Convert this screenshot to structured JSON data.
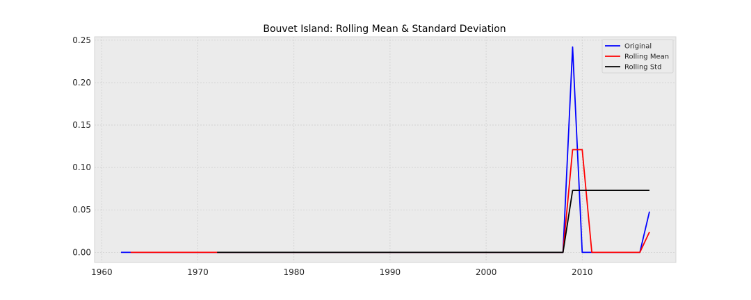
{
  "chart_data": {
    "type": "line",
    "title": "Bouvet Island: Rolling Mean & Standard Deviation",
    "xlabel": "",
    "ylabel": "",
    "xlim": [
      1959.25,
      2019.75
    ],
    "ylim": [
      -0.012,
      0.254
    ],
    "xticks": [
      1960,
      1970,
      1980,
      1990,
      2000,
      2010
    ],
    "yticks": [
      0.0,
      0.05,
      0.1,
      0.15,
      0.2,
      0.25
    ],
    "ytick_labels": [
      "0.00",
      "0.05",
      "0.10",
      "0.15",
      "0.20",
      "0.25"
    ],
    "grid": true,
    "legend_position": "top-right",
    "background": "#ebebeb",
    "series": [
      {
        "name": "Original",
        "color": "#0000ff",
        "x": [
          1962,
          1963,
          1964,
          1965,
          1966,
          1967,
          1968,
          1969,
          1970,
          1971,
          1972,
          1973,
          1974,
          1975,
          1976,
          1977,
          1978,
          1979,
          1980,
          1981,
          1982,
          1983,
          1984,
          1985,
          1986,
          1987,
          1988,
          1989,
          1990,
          1991,
          1992,
          1993,
          1994,
          1995,
          1996,
          1997,
          1998,
          1999,
          2000,
          2001,
          2002,
          2003,
          2004,
          2005,
          2006,
          2007,
          2008,
          2009,
          2010,
          2011,
          2012,
          2013,
          2014,
          2015,
          2016,
          2017
        ],
        "y": [
          0,
          0,
          0,
          0,
          0,
          0,
          0,
          0,
          0,
          0,
          0,
          0,
          0,
          0,
          0,
          0,
          0,
          0,
          0,
          0,
          0,
          0,
          0,
          0,
          0,
          0,
          0,
          0,
          0,
          0,
          0,
          0,
          0,
          0,
          0,
          0,
          0,
          0,
          0,
          0,
          0,
          0,
          0,
          0,
          0,
          0,
          0,
          0.242,
          0,
          0,
          0,
          0,
          0,
          0,
          0,
          0.048
        ]
      },
      {
        "name": "Rolling Mean",
        "color": "#ff0000",
        "x": [
          1963,
          1964,
          1965,
          1966,
          1967,
          1968,
          1969,
          1970,
          1971,
          1972,
          1973,
          1974,
          1975,
          1976,
          1977,
          1978,
          1979,
          1980,
          1981,
          1982,
          1983,
          1984,
          1985,
          1986,
          1987,
          1988,
          1989,
          1990,
          1991,
          1992,
          1993,
          1994,
          1995,
          1996,
          1997,
          1998,
          1999,
          2000,
          2001,
          2002,
          2003,
          2004,
          2005,
          2006,
          2007,
          2008,
          2009,
          2010,
          2011,
          2012,
          2013,
          2014,
          2015,
          2016,
          2017
        ],
        "y": [
          0,
          0,
          0,
          0,
          0,
          0,
          0,
          0,
          0,
          0,
          0,
          0,
          0,
          0,
          0,
          0,
          0,
          0,
          0,
          0,
          0,
          0,
          0,
          0,
          0,
          0,
          0,
          0,
          0,
          0,
          0,
          0,
          0,
          0,
          0,
          0,
          0,
          0,
          0,
          0,
          0,
          0,
          0,
          0,
          0,
          0,
          0.121,
          0.121,
          0,
          0,
          0,
          0,
          0,
          0,
          0.024
        ]
      },
      {
        "name": "Rolling Std",
        "color": "#000000",
        "x": [
          1972,
          1973,
          1974,
          1975,
          1976,
          1977,
          1978,
          1979,
          1980,
          1981,
          1982,
          1983,
          1984,
          1985,
          1986,
          1987,
          1988,
          1989,
          1990,
          1991,
          1992,
          1993,
          1994,
          1995,
          1996,
          1997,
          1998,
          1999,
          2000,
          2001,
          2002,
          2003,
          2004,
          2005,
          2006,
          2007,
          2008,
          2009,
          2010,
          2011,
          2012,
          2013,
          2014,
          2015,
          2016,
          2017
        ],
        "y": [
          0,
          0,
          0,
          0,
          0,
          0,
          0,
          0,
          0,
          0,
          0,
          0,
          0,
          0,
          0,
          0,
          0,
          0,
          0,
          0,
          0,
          0,
          0,
          0,
          0,
          0,
          0,
          0,
          0,
          0,
          0,
          0,
          0,
          0,
          0,
          0,
          0,
          0.073,
          0.073,
          0.073,
          0.073,
          0.073,
          0.073,
          0.073,
          0.073,
          0.073
        ]
      }
    ]
  }
}
